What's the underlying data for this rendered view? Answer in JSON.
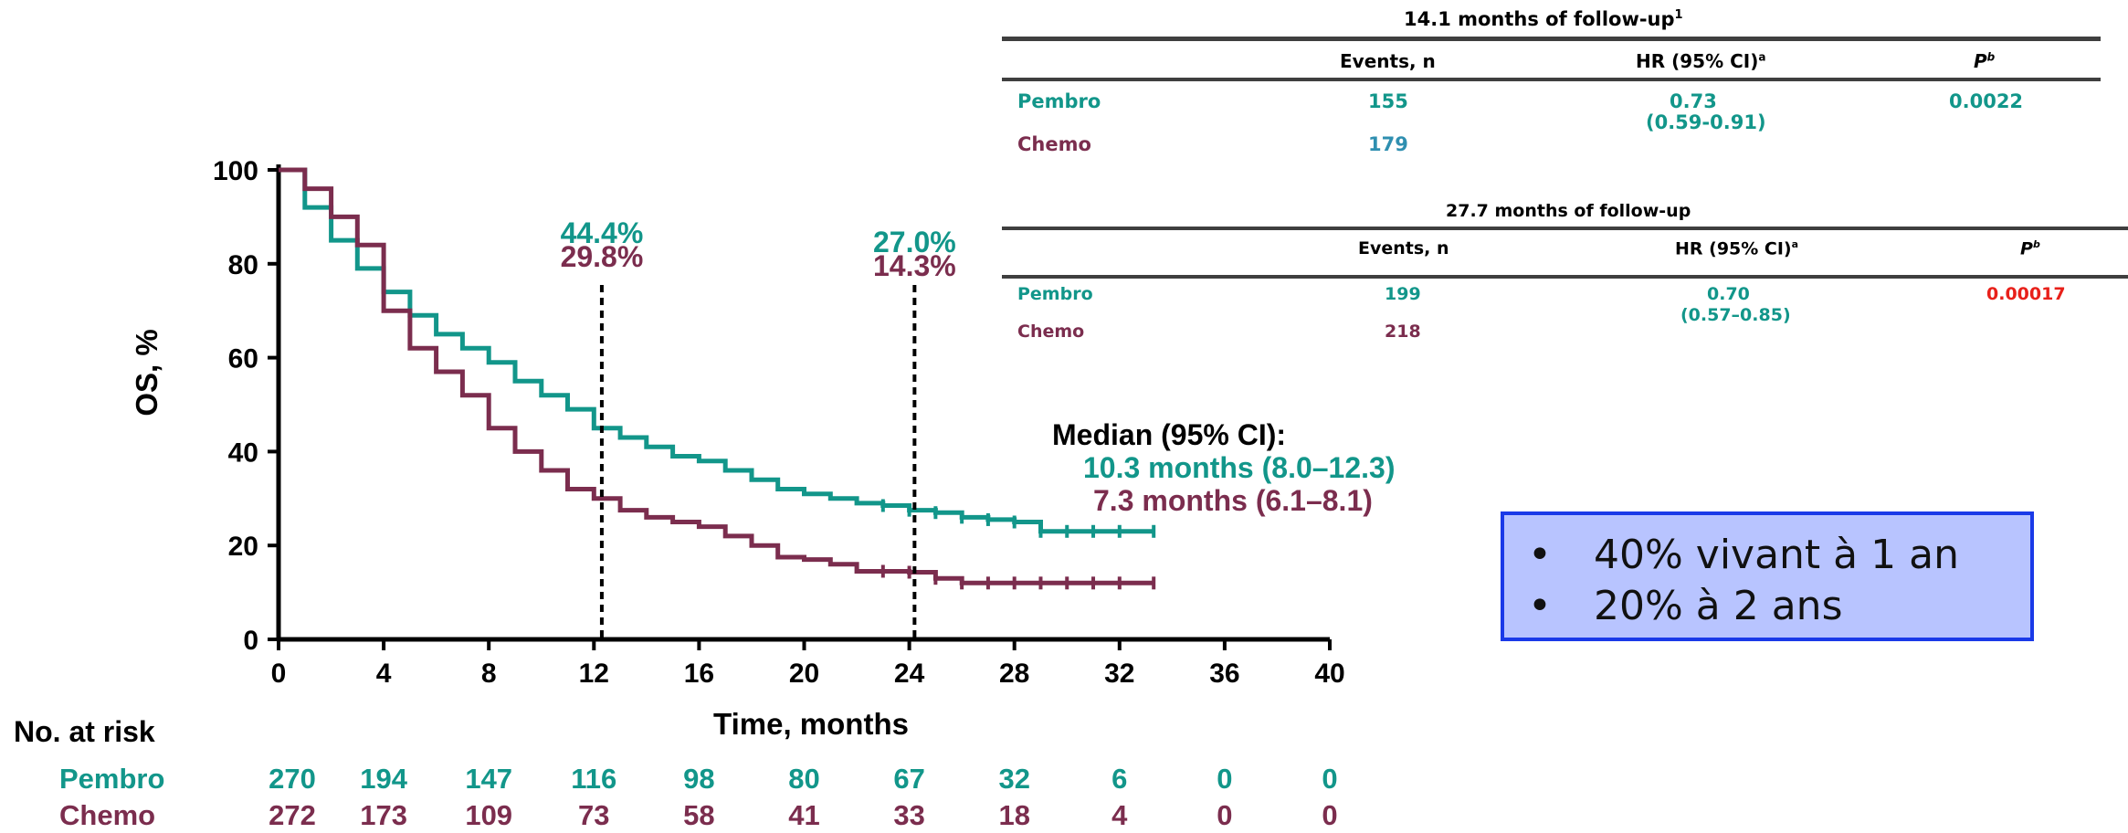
{
  "colors": {
    "pembro": "#12968a",
    "chemo": "#7b2d4e",
    "pvalue_red": "#e8201a",
    "callout_bg": "#b8c4ff",
    "callout_border": "#1a3ae8"
  },
  "chart_data": {
    "type": "line",
    "xlabel": "Time, months",
    "ylabel": "OS, %",
    "xlim": [
      0,
      40
    ],
    "ylim": [
      0,
      100
    ],
    "x_ticks": [
      "0",
      "4",
      "8",
      "12",
      "16",
      "20",
      "24",
      "28",
      "32",
      "36",
      "40"
    ],
    "y_ticks": [
      "0",
      "20",
      "40",
      "60",
      "80",
      "100"
    ],
    "grid": false,
    "series": [
      {
        "name": "Pembro",
        "color": "#12968a",
        "x": [
          0,
          1,
          2,
          3,
          4,
          5,
          6,
          7,
          8,
          9,
          10,
          11,
          12,
          13,
          14,
          15,
          16,
          17,
          18,
          19,
          20,
          21,
          22,
          23,
          24,
          25,
          26,
          27,
          28,
          29,
          30,
          31,
          32,
          33.3
        ],
        "y": [
          100,
          92,
          85,
          79,
          74,
          69,
          65,
          62,
          59,
          55,
          52,
          49,
          45,
          43,
          41,
          39,
          38,
          36,
          34,
          32,
          31,
          30,
          29,
          28.5,
          27.5,
          27,
          26,
          25.5,
          25,
          23,
          23,
          23,
          23,
          23
        ]
      },
      {
        "name": "Chemo",
        "color": "#7b2d4e",
        "x": [
          0,
          1,
          2,
          3,
          4,
          5,
          6,
          7,
          8,
          9,
          10,
          11,
          12,
          13,
          14,
          15,
          16,
          17,
          18,
          19,
          20,
          21,
          22,
          23,
          24,
          25,
          26,
          27,
          28,
          29,
          30,
          31,
          32,
          33.3
        ],
        "y": [
          100,
          96,
          90,
          84,
          70,
          62,
          57,
          52,
          45,
          40,
          36,
          32,
          30,
          27.5,
          26,
          25,
          24,
          22,
          20,
          17.5,
          17,
          16,
          14.5,
          14.5,
          14.3,
          13,
          12,
          12,
          12,
          12,
          12,
          12,
          12,
          12
        ]
      }
    ],
    "annotations": [
      {
        "x": 12.3,
        "pembro_label": "44.4%",
        "chemo_label": "29.8%"
      },
      {
        "x": 24.2,
        "pembro_label": "27.0%",
        "chemo_label": "14.3%"
      }
    ]
  },
  "median": {
    "title": "Median (95% CI):",
    "pembro": "10.3 months (8.0–12.3)",
    "chemo": "7.3 months (6.1–8.1)"
  },
  "risk_table": {
    "title": "No. at risk",
    "rows": [
      {
        "label": "Pembro",
        "values": [
          "270",
          "194",
          "147",
          "116",
          "98",
          "80",
          "67",
          "32",
          "6",
          "0",
          "0"
        ]
      },
      {
        "label": "Chemo",
        "values": [
          "272",
          "173",
          "109",
          "73",
          "58",
          "41",
          "33",
          "18",
          "4",
          "0",
          "0"
        ]
      }
    ]
  },
  "table1": {
    "title": "14.1 months of follow-up",
    "title_sup": "1",
    "headers": {
      "events": "Events, n",
      "hr": "HR (95% CI)",
      "hr_sup": "a",
      "p": "P",
      "p_sup": "b"
    },
    "pembro_label": "Pembro",
    "chemo_label": "Chemo",
    "pembro_events": "155",
    "chemo_events": "179",
    "hr": "0.73",
    "ci": "(0.59-0.91)",
    "p": "0.0022"
  },
  "table2": {
    "title": "27.7 months of follow-up",
    "headers": {
      "events": "Events, n",
      "hr": "HR (95% CI)",
      "hr_sup": "a",
      "p": "P",
      "p_sup": "b"
    },
    "pembro_label": "Pembro",
    "chemo_label": "Chemo",
    "pembro_events": "199",
    "chemo_events": "218",
    "hr": "0.70",
    "ci": "(0.57–0.85)",
    "p": "0.00017"
  },
  "callout": {
    "bullet": "•",
    "items": [
      "40% vivant à 1 an",
      "20% à 2 ans"
    ]
  }
}
